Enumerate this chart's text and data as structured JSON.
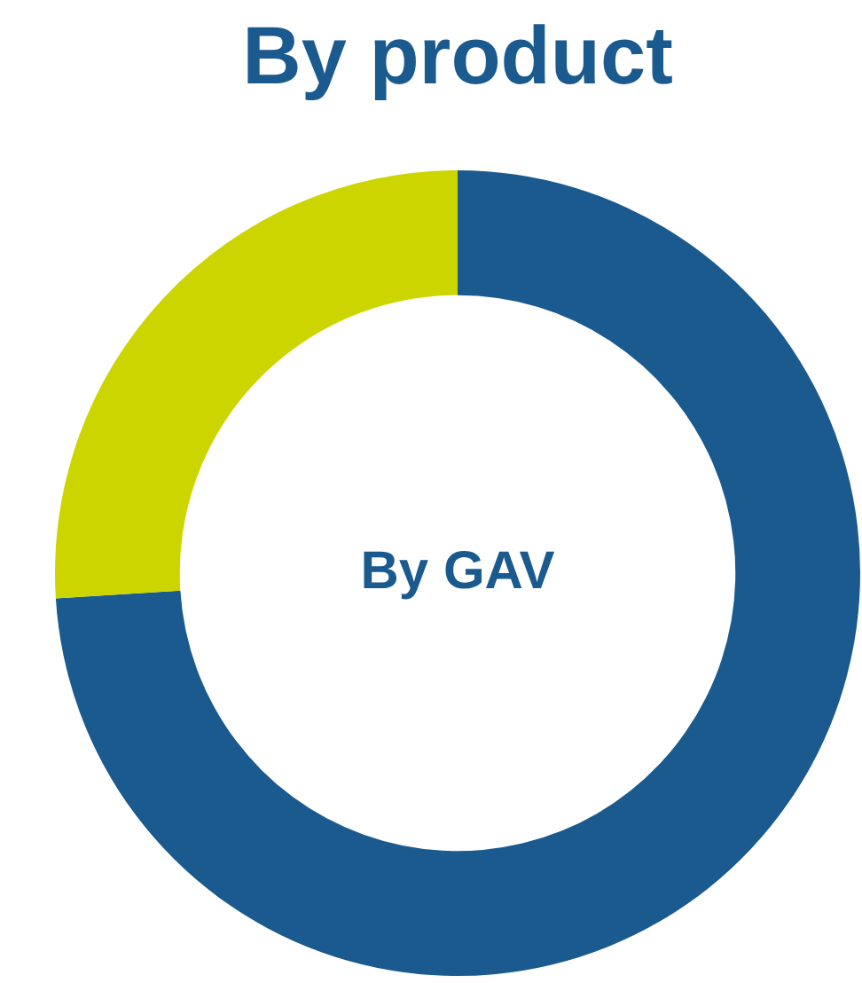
{
  "chart_data": {
    "type": "donut",
    "title": "By product",
    "categories": [
      null,
      null
    ],
    "values": [
      74,
      26
    ],
    "colors": [
      "#1a5a8f",
      "#cdd500"
    ],
    "annotations": [
      "By GAV"
    ],
    "legend": false
  }
}
